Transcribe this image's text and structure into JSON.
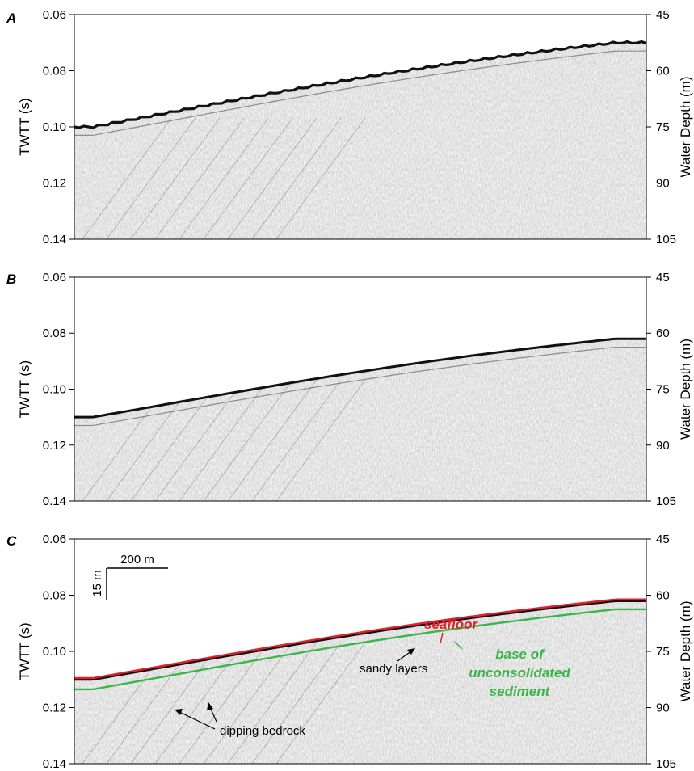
{
  "panels": [
    {
      "label": "A",
      "left_axis": {
        "title": "TWTT (s)",
        "ticks": [
          "0.06",
          "0.08",
          "0.10",
          "0.12",
          "0.14"
        ]
      },
      "right_axis": {
        "title": "Water Depth (m)",
        "ticks": [
          "45",
          "60",
          "75",
          "90",
          "105"
        ]
      },
      "seafloor_twtt": {
        "start": 0.1,
        "end": 0.07
      }
    },
    {
      "label": "B",
      "left_axis": {
        "title": "TWTT (s)",
        "ticks": [
          "0.06",
          "0.08",
          "0.10",
          "0.12",
          "0.14"
        ]
      },
      "right_axis": {
        "title": "Water Depth (m)",
        "ticks": [
          "45",
          "60",
          "75",
          "90",
          "105"
        ]
      },
      "seafloor_twtt": {
        "start": 0.11,
        "end": 0.082
      }
    },
    {
      "label": "C",
      "left_axis": {
        "title": "TWTT (s)",
        "ticks": [
          "0.06",
          "0.08",
          "0.10",
          "0.12",
          "0.14"
        ]
      },
      "right_axis": {
        "title": "Water Depth (m)",
        "ticks": [
          "45",
          "60",
          "75",
          "90",
          "105"
        ]
      },
      "seafloor_twtt": {
        "start": 0.11,
        "end": 0.082
      }
    }
  ],
  "annotations": {
    "scale_horizontal": "200 m",
    "scale_vertical": "15 m",
    "seafloor": "seafloor",
    "sandy_layers": "sandy layers",
    "base_line1": "base of",
    "base_line2": "unconsolidated",
    "base_line3": "sediment",
    "dipping_bedrock": "dipping bedrock"
  },
  "colors": {
    "seafloor": "#e0202a",
    "base_sediment": "#3bb54a",
    "reflector": "#1a1a1a"
  }
}
